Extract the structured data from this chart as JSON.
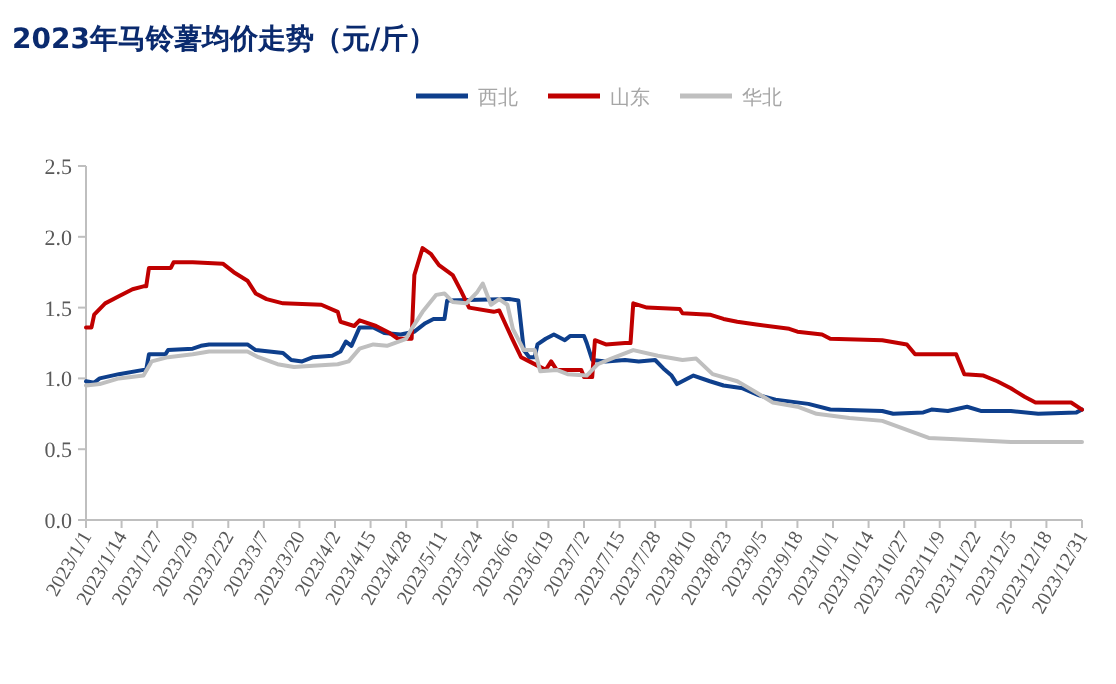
{
  "chart_data": {
    "type": "line",
    "title": "2023年马铃薯均价走势（元/斤）",
    "legend": "top",
    "grid": false,
    "marker": "none",
    "line_style": "solid",
    "xlim": [
      "2023-01-01",
      "2023-12-31"
    ],
    "xticks": [
      {
        "value": "2023-01-01",
        "label": "2023/1/1"
      },
      {
        "value": "2023-01-14",
        "label": "2023/1/14"
      },
      {
        "value": "2023-01-27",
        "label": "2023/1/27"
      },
      {
        "value": "2023-02-09",
        "label": "2023/2/9"
      },
      {
        "value": "2023-02-22",
        "label": "2023/2/22"
      },
      {
        "value": "2023-03-07",
        "label": "2023/3/7"
      },
      {
        "value": "2023-03-20",
        "label": "2023/3/20"
      },
      {
        "value": "2023-04-02",
        "label": "2023/4/2"
      },
      {
        "value": "2023-04-15",
        "label": "2023/4/15"
      },
      {
        "value": "2023-04-28",
        "label": "2023/4/28"
      },
      {
        "value": "2023-05-11",
        "label": "2023/5/11"
      },
      {
        "value": "2023-05-24",
        "label": "2023/5/24"
      },
      {
        "value": "2023-06-06",
        "label": "2023/6/6"
      },
      {
        "value": "2023-06-19",
        "label": "2023/6/19"
      },
      {
        "value": "2023-07-02",
        "label": "2023/7/2"
      },
      {
        "value": "2023-07-15",
        "label": "2023/7/15"
      },
      {
        "value": "2023-07-28",
        "label": "2023/7/28"
      },
      {
        "value": "2023-08-10",
        "label": "2023/8/10"
      },
      {
        "value": "2023-08-23",
        "label": "2023/8/23"
      },
      {
        "value": "2023-09-05",
        "label": "2023/9/5"
      },
      {
        "value": "2023-09-18",
        "label": "2023/9/18"
      },
      {
        "value": "2023-10-01",
        "label": "2023/10/1"
      },
      {
        "value": "2023-10-14",
        "label": "2023/10/14"
      },
      {
        "value": "2023-10-27",
        "label": "2023/10/27"
      },
      {
        "value": "2023-11-09",
        "label": "2023/11/9"
      },
      {
        "value": "2023-11-22",
        "label": "2023/11/22"
      },
      {
        "value": "2023-12-05",
        "label": "2023/12/5"
      },
      {
        "value": "2023-12-18",
        "label": "2023/12/18"
      },
      {
        "value": "2023-12-31",
        "label": "2023/12/31"
      }
    ],
    "ylim": [
      0,
      2.5
    ],
    "yticks": [
      {
        "value": 0,
        "label": "0.0"
      },
      {
        "value": 0.5,
        "label": "0.5"
      },
      {
        "value": 1,
        "label": "1.0"
      },
      {
        "value": 1.5,
        "label": "1.5"
      },
      {
        "value": 2,
        "label": "2.0"
      },
      {
        "value": 2.5,
        "label": "2.5"
      }
    ],
    "series": [
      {
        "name": "西北",
        "color": "#0e3f8c",
        "x": [
          "2023-01-01",
          "2023-01-04",
          "2023-01-06",
          "2023-01-13",
          "2023-01-22",
          "2023-01-23",
          "2023-01-24",
          "2023-01-30",
          "2023-01-31",
          "2023-02-09",
          "2023-02-12",
          "2023-02-15",
          "2023-03-01",
          "2023-03-04",
          "2023-03-14",
          "2023-03-17",
          "2023-03-21",
          "2023-03-25",
          "2023-04-01",
          "2023-04-04",
          "2023-04-06",
          "2023-04-08",
          "2023-04-11",
          "2023-04-16",
          "2023-04-20",
          "2023-04-26",
          "2023-05-01",
          "2023-05-05",
          "2023-05-08",
          "2023-05-12",
          "2023-05-13",
          "2023-06-05",
          "2023-06-08",
          "2023-06-10",
          "2023-06-12",
          "2023-06-14",
          "2023-06-15",
          "2023-06-18",
          "2023-06-21",
          "2023-06-25",
          "2023-06-27",
          "2023-07-02",
          "2023-07-03",
          "2023-07-05",
          "2023-07-10",
          "2023-07-17",
          "2023-07-22",
          "2023-07-28",
          "2023-07-31",
          "2023-08-03",
          "2023-08-05",
          "2023-08-08",
          "2023-08-11",
          "2023-08-17",
          "2023-08-22",
          "2023-08-29",
          "2023-09-04",
          "2023-09-10",
          "2023-09-22",
          "2023-09-30",
          "2023-10-19",
          "2023-10-23",
          "2023-11-03",
          "2023-11-06",
          "2023-11-12",
          "2023-11-19",
          "2023-11-24",
          "2023-12-05",
          "2023-12-15",
          "2023-12-29",
          "2023-12-31"
        ],
        "values": [
          0.98,
          0.97,
          1.0,
          1.03,
          1.06,
          1.06,
          1.17,
          1.17,
          1.2,
          1.21,
          1.23,
          1.24,
          1.24,
          1.2,
          1.18,
          1.13,
          1.12,
          1.15,
          1.16,
          1.19,
          1.26,
          1.23,
          1.36,
          1.36,
          1.32,
          1.31,
          1.33,
          1.39,
          1.42,
          1.42,
          1.55,
          1.56,
          1.55,
          1.2,
          1.15,
          1.15,
          1.24,
          1.28,
          1.31,
          1.27,
          1.3,
          1.3,
          1.25,
          1.13,
          1.12,
          1.13,
          1.12,
          1.13,
          1.07,
          1.02,
          0.96,
          0.99,
          1.02,
          0.98,
          0.95,
          0.93,
          0.88,
          0.85,
          0.82,
          0.78,
          0.77,
          0.75,
          0.76,
          0.78,
          0.77,
          0.8,
          0.77,
          0.77,
          0.75,
          0.76,
          0.78
        ]
      },
      {
        "name": "山东",
        "color": "#c00000",
        "x": [
          "2023-01-01",
          "2023-01-03",
          "2023-01-04",
          "2023-01-08",
          "2023-01-13",
          "2023-01-18",
          "2023-01-22",
          "2023-01-23",
          "2023-01-24",
          "2023-02-01",
          "2023-02-02",
          "2023-02-09",
          "2023-02-20",
          "2023-02-24",
          "2023-03-01",
          "2023-03-04",
          "2023-03-08",
          "2023-03-14",
          "2023-03-28",
          "2023-04-03",
          "2023-04-04",
          "2023-04-09",
          "2023-04-11",
          "2023-04-17",
          "2023-04-22",
          "2023-04-25",
          "2023-04-30",
          "2023-05-01",
          "2023-05-04",
          "2023-05-07",
          "2023-05-10",
          "2023-05-15",
          "2023-05-18",
          "2023-05-21",
          "2023-05-30",
          "2023-06-01",
          "2023-06-06",
          "2023-06-09",
          "2023-06-12",
          "2023-06-18",
          "2023-06-20",
          "2023-06-22",
          "2023-07-01",
          "2023-07-02",
          "2023-07-05",
          "2023-07-06",
          "2023-07-10",
          "2023-07-17",
          "2023-07-19",
          "2023-07-20",
          "2023-07-25",
          "2023-08-06",
          "2023-08-07",
          "2023-08-17",
          "2023-08-22",
          "2023-08-27",
          "2023-09-03",
          "2023-09-15",
          "2023-09-18",
          "2023-09-27",
          "2023-09-30",
          "2023-10-19",
          "2023-10-28",
          "2023-10-31",
          "2023-11-15",
          "2023-11-18",
          "2023-11-25",
          "2023-11-30",
          "2023-12-05",
          "2023-12-10",
          "2023-12-14",
          "2023-12-27",
          "2023-12-31"
        ],
        "values": [
          1.36,
          1.36,
          1.45,
          1.53,
          1.58,
          1.63,
          1.65,
          1.65,
          1.78,
          1.78,
          1.82,
          1.82,
          1.81,
          1.75,
          1.69,
          1.6,
          1.56,
          1.53,
          1.52,
          1.47,
          1.4,
          1.37,
          1.41,
          1.37,
          1.32,
          1.28,
          1.28,
          1.73,
          1.92,
          1.88,
          1.8,
          1.73,
          1.62,
          1.5,
          1.47,
          1.48,
          1.27,
          1.15,
          1.12,
          1.06,
          1.12,
          1.06,
          1.06,
          1.01,
          1.01,
          1.27,
          1.24,
          1.25,
          1.25,
          1.53,
          1.5,
          1.49,
          1.46,
          1.45,
          1.42,
          1.4,
          1.38,
          1.35,
          1.33,
          1.31,
          1.28,
          1.27,
          1.24,
          1.17,
          1.17,
          1.03,
          1.02,
          0.98,
          0.93,
          0.87,
          0.83,
          0.83,
          0.78
        ]
      },
      {
        "name": "华北",
        "color": "#bfbfbf",
        "x": [
          "2023-01-01",
          "2023-01-06",
          "2023-01-13",
          "2023-01-22",
          "2023-01-25",
          "2023-01-31",
          "2023-02-09",
          "2023-02-15",
          "2023-03-01",
          "2023-03-05",
          "2023-03-12",
          "2023-03-18",
          "2023-03-25",
          "2023-04-03",
          "2023-04-07",
          "2023-04-11",
          "2023-04-16",
          "2023-04-21",
          "2023-04-28",
          "2023-04-30",
          "2023-05-04",
          "2023-05-09",
          "2023-05-12",
          "2023-05-15",
          "2023-05-20",
          "2023-05-24",
          "2023-05-26",
          "2023-05-29",
          "2023-06-01",
          "2023-06-04",
          "2023-06-06",
          "2023-06-10",
          "2023-06-14",
          "2023-06-16",
          "2023-06-22",
          "2023-06-26",
          "2023-07-03",
          "2023-07-07",
          "2023-07-12",
          "2023-07-20",
          "2023-07-29",
          "2023-08-07",
          "2023-08-12",
          "2023-08-18",
          "2023-08-27",
          "2023-09-03",
          "2023-09-09",
          "2023-09-18",
          "2023-09-25",
          "2023-10-07",
          "2023-10-19",
          "2023-10-29",
          "2023-11-05",
          "2023-11-15",
          "2023-12-05",
          "2023-12-31"
        ],
        "values": [
          0.95,
          0.96,
          1.0,
          1.02,
          1.12,
          1.15,
          1.17,
          1.19,
          1.19,
          1.15,
          1.1,
          1.08,
          1.09,
          1.1,
          1.12,
          1.21,
          1.24,
          1.23,
          1.28,
          1.35,
          1.47,
          1.59,
          1.6,
          1.54,
          1.53,
          1.61,
          1.67,
          1.52,
          1.56,
          1.52,
          1.35,
          1.2,
          1.2,
          1.05,
          1.06,
          1.03,
          1.02,
          1.1,
          1.14,
          1.2,
          1.16,
          1.13,
          1.14,
          1.03,
          0.98,
          0.9,
          0.83,
          0.8,
          0.75,
          0.72,
          0.7,
          0.63,
          0.58,
          0.57,
          0.55,
          0.55
        ]
      }
    ]
  }
}
